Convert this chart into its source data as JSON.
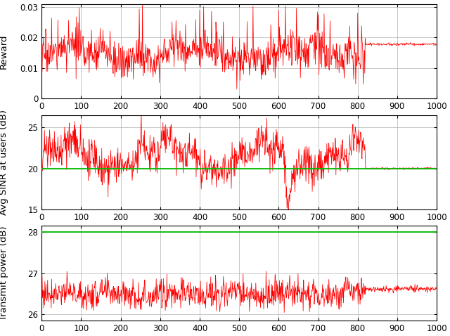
{
  "xlim": [
    0,
    1000
  ],
  "reward_ylim": [
    0,
    0.031
  ],
  "reward_yticks": [
    0,
    0.01,
    0.02,
    0.03
  ],
  "sinr_ylim": [
    15,
    26.5
  ],
  "sinr_yticks": [
    15,
    20,
    25
  ],
  "power_ylim": [
    25.85,
    28.15
  ],
  "power_yticks": [
    26,
    27,
    28
  ],
  "sinr_ref": 20.0,
  "power_ref": 28.0,
  "xticks": [
    0,
    100,
    200,
    300,
    400,
    500,
    600,
    700,
    800,
    900,
    1000
  ],
  "red_color": "#ff0000",
  "green_color": "#00bb00",
  "ylabel1": "Reward",
  "ylabel2": "Avg SINR at users (dB)",
  "ylabel3": "Transmit power (dB)",
  "linewidth": 0.55,
  "convergence_episode": 820,
  "reward_converged_mean": 0.0178,
  "reward_converged_std": 0.00025,
  "reward_noisy_mean": 0.0145,
  "sinr_noisy_mean": 21.5,
  "sinr_converged_mean": 20.0,
  "sinr_converged_std": 0.07,
  "power_noisy_mean": 26.5,
  "power_noisy_std": 0.18,
  "power_converged_mean": 26.62,
  "power_converged_std": 0.04,
  "figwidth": 6.4,
  "figheight": 4.78,
  "dpi": 100
}
